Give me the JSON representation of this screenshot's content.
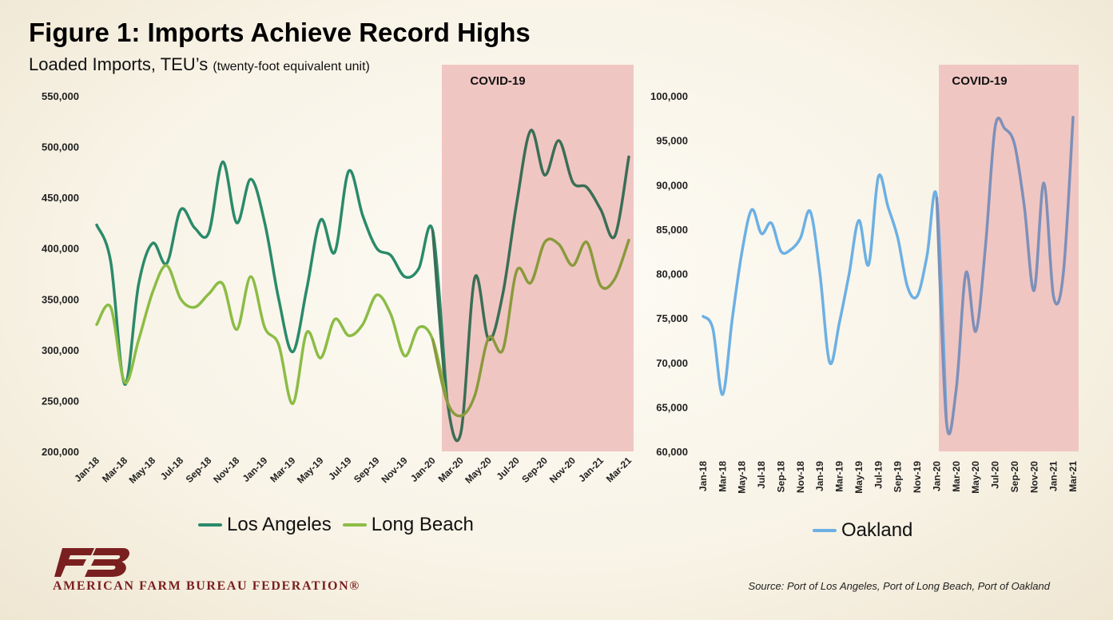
{
  "header": {
    "title": "Figure 1: Imports Achieve Record Highs",
    "subtitle_main": "Loaded Imports, TEU’s",
    "subtitle_note": "(twenty-foot equivalent unit)"
  },
  "footer": {
    "org_name": "AMERICAN FARM BUREAU FEDERATION®",
    "source": "Source: Port of Los Angeles, Port of Long Beach, Port of Oakland"
  },
  "colors": {
    "los_angeles": "#2a8a6a",
    "los_angeles_covid": "#3a6e55",
    "long_beach": "#8cbc45",
    "long_beach_covid": "#8a9a3c",
    "oakland": "#6cb0e4",
    "oakland_covid": "#7d90b8",
    "covid_shade": "#f0c6c3",
    "logo": "#7a1f1f"
  },
  "chart_data": [
    {
      "type": "line",
      "title": "",
      "xlabel": "",
      "ylabel": "",
      "ylim": [
        200000,
        550000
      ],
      "yticks": [
        200000,
        250000,
        300000,
        350000,
        400000,
        450000,
        500000,
        550000
      ],
      "ytick_labels": [
        "200,000",
        "250,000",
        "300,000",
        "350,000",
        "400,000",
        "450,000",
        "500,000",
        "550,000"
      ],
      "x": [
        "Jan-18",
        "Feb-18",
        "Mar-18",
        "Apr-18",
        "May-18",
        "Jun-18",
        "Jul-18",
        "Aug-18",
        "Sep-18",
        "Oct-18",
        "Nov-18",
        "Dec-18",
        "Jan-19",
        "Feb-19",
        "Mar-19",
        "Apr-19",
        "May-19",
        "Jun-19",
        "Jul-19",
        "Aug-19",
        "Sep-19",
        "Oct-19",
        "Nov-19",
        "Dec-19",
        "Jan-20",
        "Feb-20",
        "Mar-20",
        "Apr-20",
        "May-20",
        "Jun-20",
        "Jul-20",
        "Aug-20",
        "Sep-20",
        "Oct-20",
        "Nov-20",
        "Dec-20",
        "Jan-21",
        "Feb-21",
        "Mar-21"
      ],
      "xtick_labels": [
        "Jan-18",
        "Mar-18",
        "May-18",
        "Jul-18",
        "Sep-18",
        "Nov-18",
        "Jan-19",
        "Mar-19",
        "May-19",
        "Jul-19",
        "Sep-19",
        "Nov-19",
        "Jan-20",
        "Mar-20",
        "May-20",
        "Jul-20",
        "Sep-20",
        "Nov-20",
        "Jan-21",
        "Mar-21"
      ],
      "shaded_region": {
        "label": "COVID-19",
        "from": "Feb-20",
        "to": "Mar-21"
      },
      "grid": false,
      "legend": "bottom",
      "series": [
        {
          "name": "Los Angeles",
          "values": [
            423000,
            387000,
            266000,
            365000,
            405000,
            385000,
            438000,
            420000,
            415000,
            485000,
            425000,
            468000,
            425000,
            350000,
            298000,
            360000,
            428000,
            396000,
            476000,
            432000,
            400000,
            393000,
            372000,
            380000,
            417000,
            253000,
            218000,
            371000,
            310000,
            355000,
            445000,
            516000,
            472000,
            506000,
            465000,
            460000,
            438000,
            412000,
            490000
          ]
        },
        {
          "name": "Long Beach",
          "values": [
            325000,
            342000,
            268000,
            310000,
            357000,
            383000,
            350000,
            342000,
            355000,
            365000,
            320000,
            372000,
            322000,
            305000,
            247000,
            317000,
            292000,
            330000,
            314000,
            325000,
            354000,
            335000,
            294000,
            322000,
            310000,
            250000,
            235000,
            255000,
            312000,
            300000,
            378000,
            366000,
            406000,
            404000,
            383000,
            406000,
            363000,
            370000,
            408000
          ]
        }
      ]
    },
    {
      "type": "line",
      "title": "",
      "xlabel": "",
      "ylabel": "",
      "ylim": [
        60000,
        100000
      ],
      "yticks": [
        60000,
        65000,
        70000,
        75000,
        80000,
        85000,
        90000,
        95000,
        100000
      ],
      "ytick_labels": [
        "60,000",
        "65,000",
        "70,000",
        "75,000",
        "80,000",
        "85,000",
        "90,000",
        "95,000",
        "100,000"
      ],
      "x": [
        "Jan-18",
        "Feb-18",
        "Mar-18",
        "Apr-18",
        "May-18",
        "Jun-18",
        "Jul-18",
        "Aug-18",
        "Sep-18",
        "Oct-18",
        "Nov-18",
        "Dec-18",
        "Jan-19",
        "Feb-19",
        "Mar-19",
        "Apr-19",
        "May-19",
        "Jun-19",
        "Jul-19",
        "Aug-19",
        "Sep-19",
        "Oct-19",
        "Nov-19",
        "Dec-19",
        "Jan-20",
        "Feb-20",
        "Mar-20",
        "Apr-20",
        "May-20",
        "Jun-20",
        "Jul-20",
        "Aug-20",
        "Sep-20",
        "Oct-20",
        "Nov-20",
        "Dec-20",
        "Jan-21",
        "Feb-21",
        "Mar-21"
      ],
      "xtick_labels": [
        "Jan-18",
        "Mar-18",
        "May-18",
        "Jul-18",
        "Sep-18",
        "Nov-18",
        "Jan-19",
        "Mar-19",
        "May-19",
        "Jul-19",
        "Sep-19",
        "Nov-19",
        "Jan-20",
        "Mar-20",
        "May-20",
        "Jul-20",
        "Sep-20",
        "Nov-20",
        "Jan-21",
        "Mar-21"
      ],
      "shaded_region": {
        "label": "COVID-19",
        "from": "Feb-20",
        "to": "Mar-21"
      },
      "grid": false,
      "legend": "bottom",
      "series": [
        {
          "name": "Oakland",
          "values": [
            75200,
            73800,
            66400,
            75000,
            82500,
            87200,
            84500,
            85700,
            82500,
            82700,
            84000,
            87000,
            80000,
            70000,
            74500,
            80000,
            86000,
            81000,
            90900,
            87500,
            84000,
            78500,
            77500,
            82000,
            88500,
            63300,
            67000,
            80100,
            73500,
            83000,
            96500,
            96300,
            94500,
            87500,
            78100,
            90200,
            77400,
            80000,
            97600
          ]
        }
      ]
    }
  ]
}
